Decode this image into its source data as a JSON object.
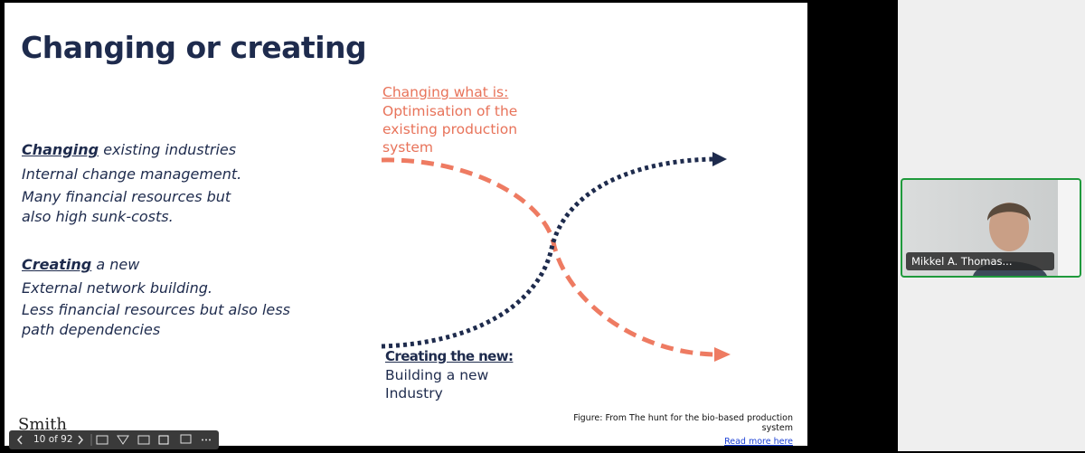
{
  "slide": {
    "title": "Changing or creating",
    "blocks": [
      {
        "heading": "Changing",
        "heading_rest": "existing industries",
        "lines": [
          "Internal change management.",
          "Many financial resources but",
          "also high sunk-costs."
        ]
      },
      {
        "heading": "Creating",
        "heading_rest": "a new",
        "lines": [
          "External network building.",
          "Less financial resources but also less",
          "path dependencies"
        ]
      }
    ],
    "diagram": {
      "top_label": {
        "heading": "Changing what is:",
        "lines": [
          "Optimisation of the",
          "existing production",
          "system"
        ]
      },
      "bottom_label": {
        "heading": "Creating the new:",
        "lines": [
          "Building a new",
          "Industry"
        ]
      }
    },
    "caption": [
      "Figure: From The hunt for the bio-based production",
      "system"
    ],
    "link": "Read more here",
    "logo": "Smith"
  },
  "toolbar": {
    "page": "10 of 92"
  },
  "participant": {
    "name": "Mikkel A. Thomas..."
  }
}
